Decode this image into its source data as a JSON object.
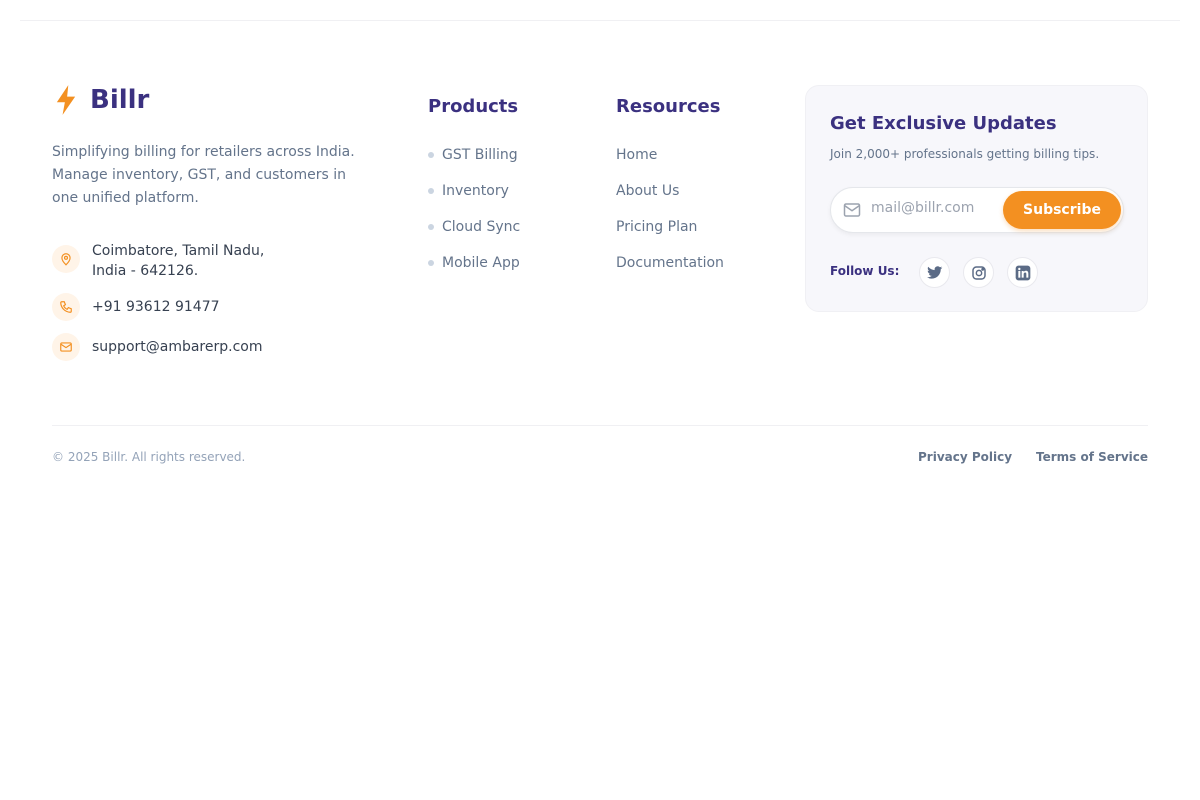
{
  "brand": {
    "name": "Billr",
    "description": "Simplifying billing for retailers across India. Manage inventory, GST, and customers in one unified platform.",
    "accent": "#f39021",
    "primary": "#3b3180"
  },
  "contact": {
    "address_line1": "Coimbatore, Tamil Nadu,",
    "address_line2": "India - 642126.",
    "phone": "+91 93612 91477",
    "email": "support@ambarerp.com"
  },
  "products": {
    "title": "Products",
    "items": [
      "GST Billing",
      "Inventory",
      "Cloud Sync",
      "Mobile App"
    ]
  },
  "resources": {
    "title": "Resources",
    "items": [
      "Home",
      "About Us",
      "Pricing Plan",
      "Documentation"
    ]
  },
  "newsletter": {
    "title": "Get Exclusive Updates",
    "subtitle": "Join 2,000+ professionals getting billing tips.",
    "placeholder": "mail@billr.com",
    "button": "Subscribe",
    "follow_label": "Follow Us:",
    "socials": [
      "twitter-icon",
      "instagram-icon",
      "linkedin-icon"
    ]
  },
  "footer": {
    "copyright": "© 2025 Billr. All rights reserved.",
    "privacy": "Privacy Policy",
    "terms": "Terms of Service"
  }
}
